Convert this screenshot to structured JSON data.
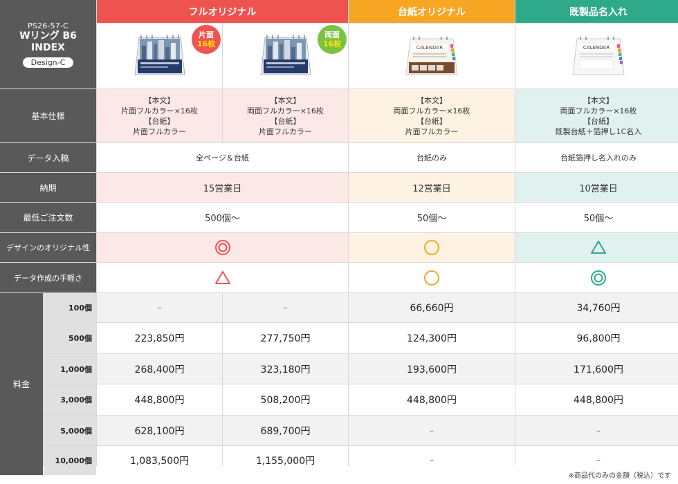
{
  "header": {
    "code": "PS26-57-C",
    "product_name_1": "Wリング B6",
    "product_name_2": "INDEX",
    "design": "Design-C",
    "col_full": "フルオリジナル",
    "col_base": "台紙オリジナル",
    "col_name": "既製品名入れ",
    "badge_single_1": "片面",
    "badge_single_2": "16枚",
    "badge_double_1": "両面",
    "badge_double_2": "16枚"
  },
  "rows": {
    "spec_label": "基本仕様",
    "data_label": "データ入稿",
    "delivery_label": "納期",
    "min_order_label": "最低ご注文数",
    "design_label": "デザインのオリジナル性",
    "ease_label": "データ作成の手軽さ",
    "fee_label": "料金"
  },
  "spec": {
    "body_head": "【本文】",
    "base_head": "【台紙】",
    "full_single_body": "片面フルカラー×16枚",
    "full_single_base": "片面フルカラー",
    "full_double_body": "両面フルカラー×16枚",
    "full_double_base": "片面フルカラー",
    "base_body": "両面フルカラー×16枚",
    "base_base": "片面フルカラー",
    "name_body": "両面フルカラー×16枚",
    "name_base": "既製台紙＋箔押し1C名入"
  },
  "data_entry": {
    "full": "全ページ＆台紙",
    "base": "台紙のみ",
    "name": "台紙箔押し名入れのみ"
  },
  "delivery": {
    "full": "15営業日",
    "base": "12営業日",
    "name": "10営業日"
  },
  "min_order": {
    "full": "500個〜",
    "base": "50個〜",
    "name": "50個〜"
  },
  "ratings": {
    "design": {
      "full": "double-circle",
      "base": "circle",
      "name": "triangle"
    },
    "ease": {
      "full": "triangle",
      "base": "circle",
      "name": "double-circle"
    },
    "colors": {
      "full": "#ef5350",
      "base": "#f6a623",
      "name": "#2eaa8a"
    }
  },
  "pricing": [
    {
      "qty": "100個",
      "single": "–",
      "double": "–",
      "base": "66,660円",
      "name": "34,760円"
    },
    {
      "qty": "500個",
      "single": "223,850円",
      "double": "277,750円",
      "base": "124,300円",
      "name": "96,800円"
    },
    {
      "qty": "1,000個",
      "single": "268,400円",
      "double": "323,180円",
      "base": "193,600円",
      "name": "171,600円"
    },
    {
      "qty": "3,000個",
      "single": "448,800円",
      "double": "508,200円",
      "base": "448,800円",
      "name": "448,800円"
    },
    {
      "qty": "5,000個",
      "single": "628,100円",
      "double": "689,700円",
      "base": "–",
      "name": "–"
    },
    {
      "qty": "10,000個",
      "single": "1,083,500円",
      "double": "1,155,000円",
      "base": "–",
      "name": "–"
    }
  ],
  "note": "※商品代のみの金額（税込）です",
  "product_images": {
    "full_single": "city-skyline-desk-calendar",
    "full_double": "city-skyline-desk-calendar",
    "base": "calendar-ready-made",
    "name": "calendar-ready-made-name"
  }
}
